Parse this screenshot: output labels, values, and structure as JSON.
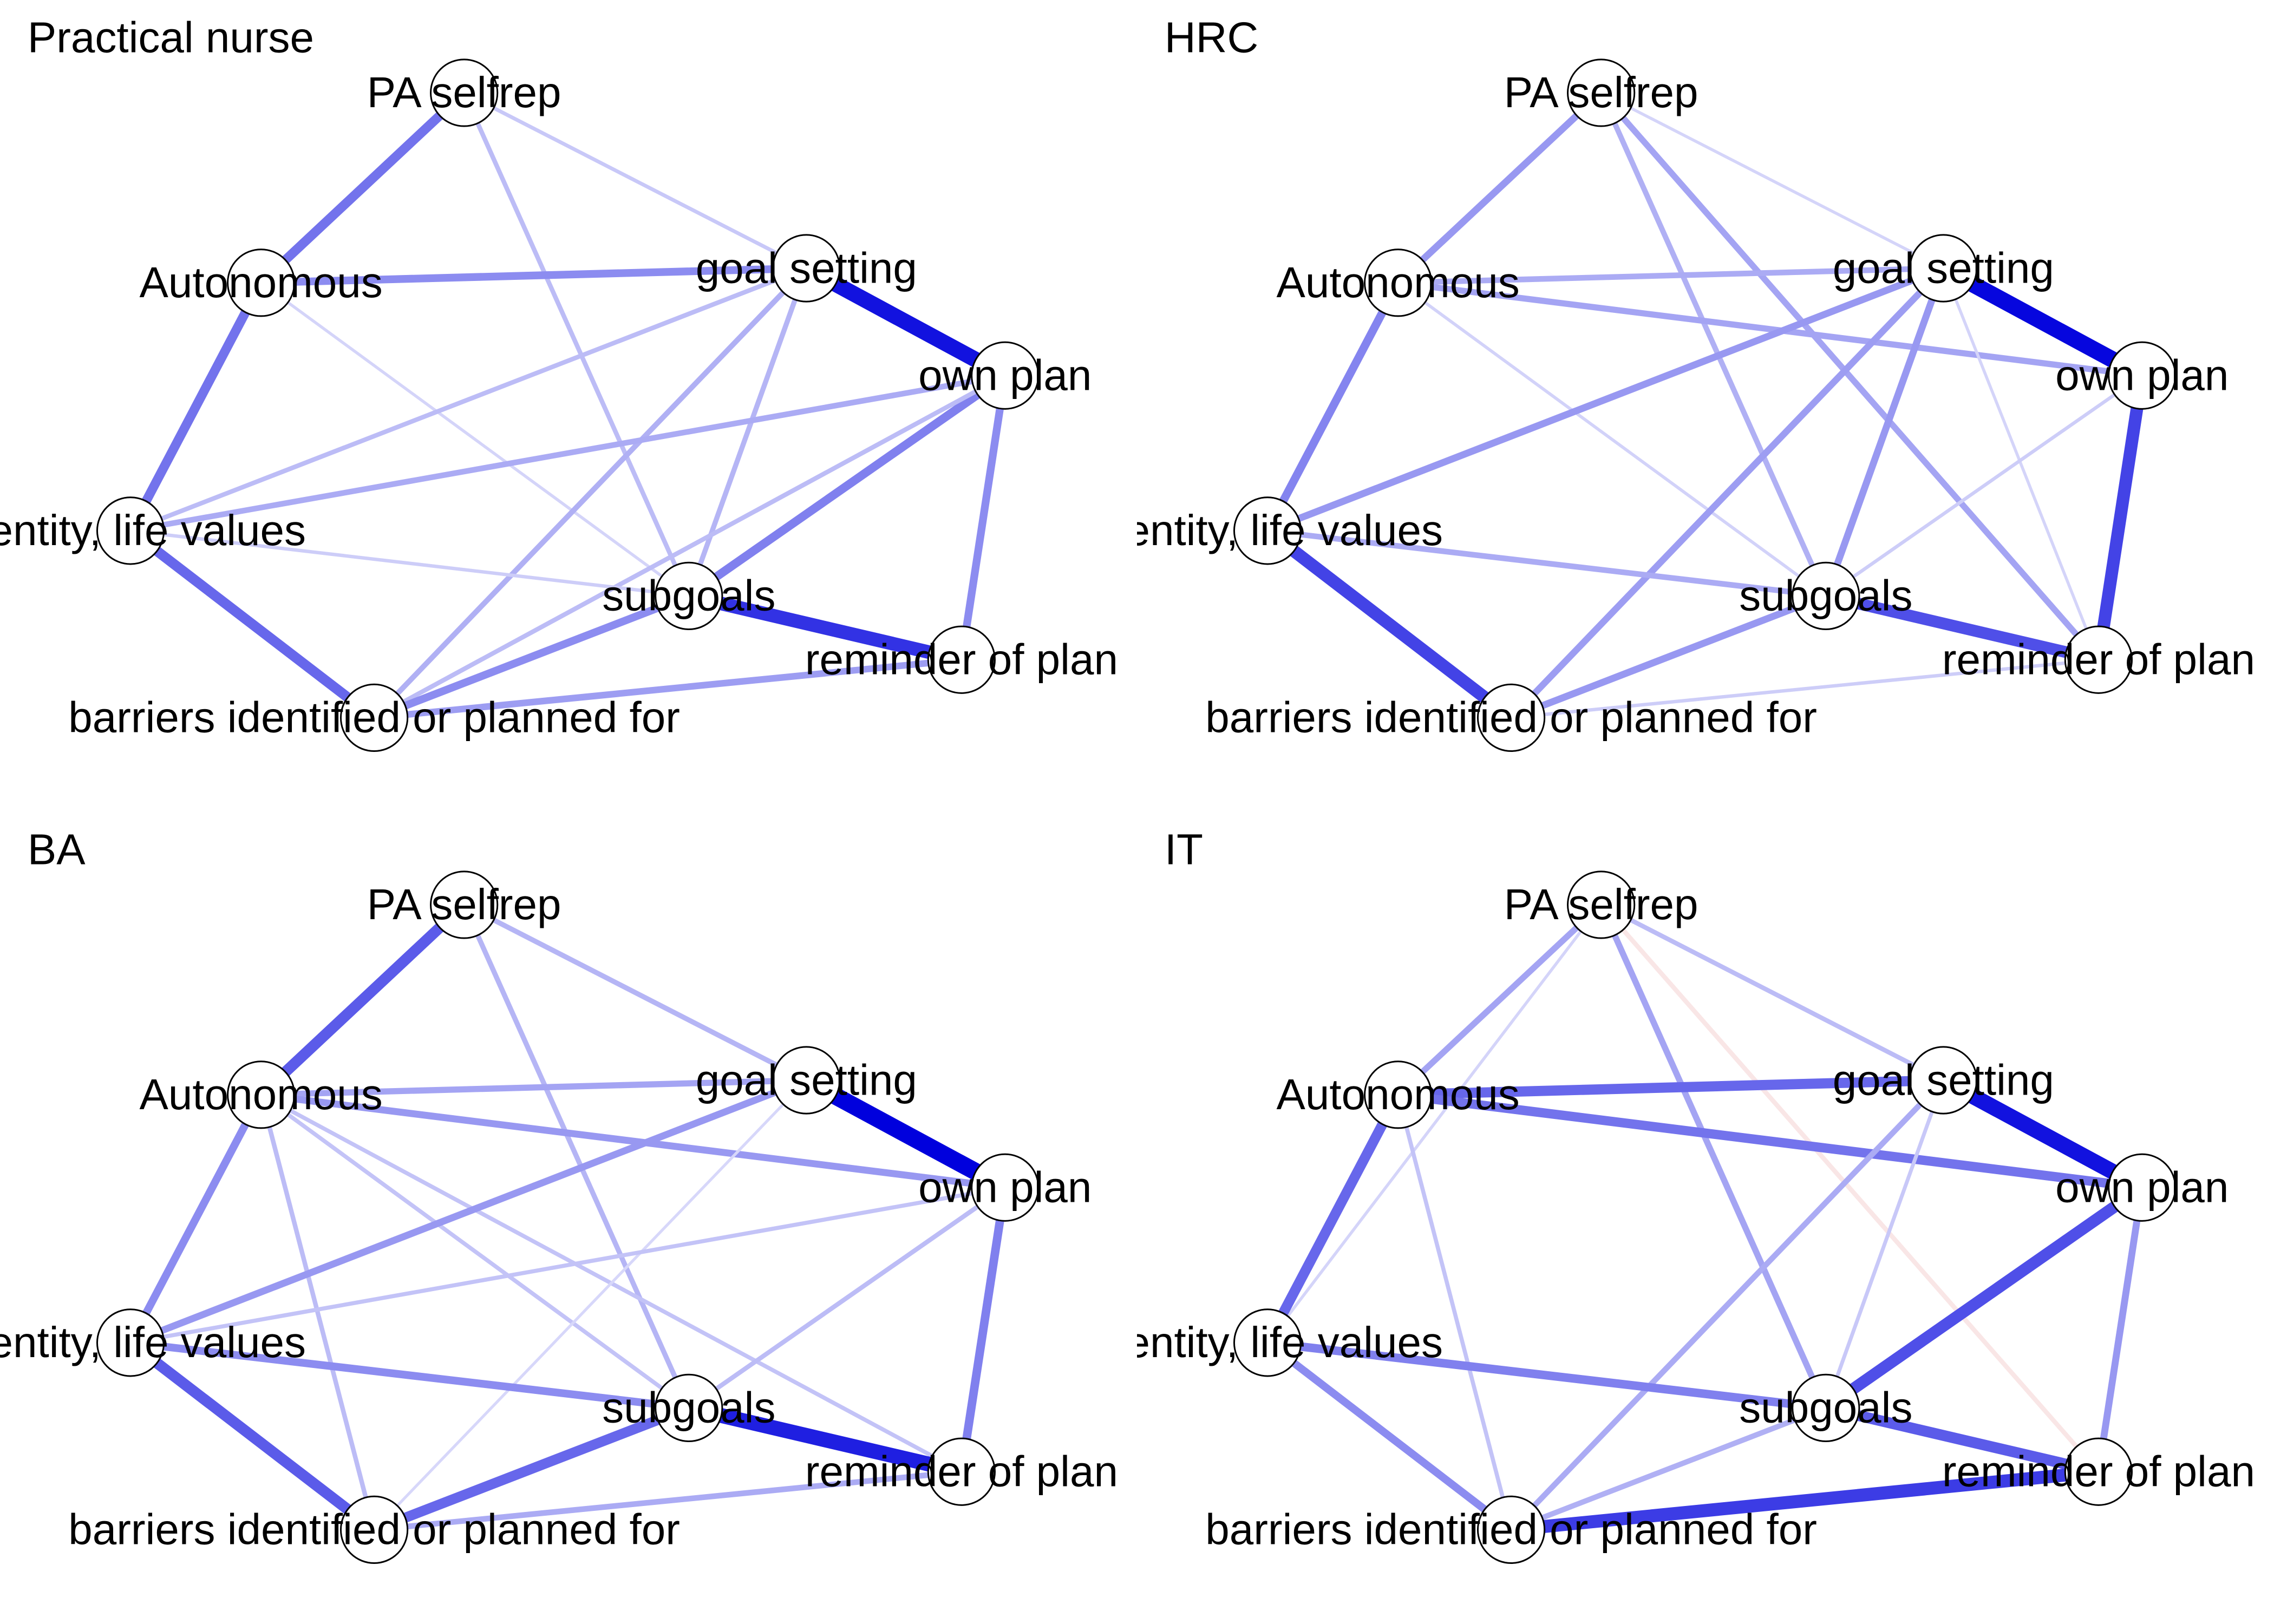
{
  "nodes": [
    {
      "id": "pa",
      "label": "PA selfrep"
    },
    {
      "id": "auto",
      "label": "Autonomous"
    },
    {
      "id": "goal",
      "label": "goal setting"
    },
    {
      "id": "own",
      "label": "own plan"
    },
    {
      "id": "iden",
      "label": "identity, life values"
    },
    {
      "id": "sub",
      "label": "subgoals"
    },
    {
      "id": "rem",
      "label": "reminder of plan"
    },
    {
      "id": "bar",
      "label": "barriers identified or planned for"
    }
  ],
  "colors": {
    "positive": "#0000dd",
    "negative": "#e8a0a0",
    "node_fill": "#ffffff",
    "node_stroke": "#000000"
  },
  "panels": [
    {
      "title": "Practical nurse",
      "edges": [
        {
          "a": "pa",
          "b": "auto",
          "w": 0.45
        },
        {
          "a": "pa",
          "b": "goal",
          "w": 0.1
        },
        {
          "a": "pa",
          "b": "sub",
          "w": 0.15
        },
        {
          "a": "auto",
          "b": "goal",
          "w": 0.35
        },
        {
          "a": "auto",
          "b": "iden",
          "w": 0.45
        },
        {
          "a": "auto",
          "b": "sub",
          "w": 0.05
        },
        {
          "a": "goal",
          "b": "own",
          "w": 0.85
        },
        {
          "a": "goal",
          "b": "iden",
          "w": 0.15
        },
        {
          "a": "goal",
          "b": "sub",
          "w": 0.18
        },
        {
          "a": "goal",
          "b": "bar",
          "w": 0.2
        },
        {
          "a": "own",
          "b": "iden",
          "w": 0.22
        },
        {
          "a": "own",
          "b": "sub",
          "w": 0.4
        },
        {
          "a": "own",
          "b": "rem",
          "w": 0.35
        },
        {
          "a": "own",
          "b": "bar",
          "w": 0.15
        },
        {
          "a": "iden",
          "b": "sub",
          "w": 0.08
        },
        {
          "a": "iden",
          "b": "bar",
          "w": 0.5
        },
        {
          "a": "sub",
          "b": "rem",
          "w": 0.72
        },
        {
          "a": "sub",
          "b": "bar",
          "w": 0.35
        },
        {
          "a": "rem",
          "b": "bar",
          "w": 0.28
        }
      ]
    },
    {
      "title": "HRC",
      "edges": [
        {
          "a": "pa",
          "b": "auto",
          "w": 0.3
        },
        {
          "a": "pa",
          "b": "goal",
          "w": 0.05
        },
        {
          "a": "pa",
          "b": "sub",
          "w": 0.2
        },
        {
          "a": "pa",
          "b": "rem",
          "w": 0.25
        },
        {
          "a": "auto",
          "b": "goal",
          "w": 0.22
        },
        {
          "a": "auto",
          "b": "own",
          "w": 0.25
        },
        {
          "a": "auto",
          "b": "iden",
          "w": 0.38
        },
        {
          "a": "auto",
          "b": "sub",
          "w": 0.06
        },
        {
          "a": "goal",
          "b": "own",
          "w": 0.9
        },
        {
          "a": "goal",
          "b": "iden",
          "w": 0.3
        },
        {
          "a": "goal",
          "b": "sub",
          "w": 0.3
        },
        {
          "a": "goal",
          "b": "bar",
          "w": 0.28
        },
        {
          "a": "goal",
          "b": "rem",
          "w": 0.05
        },
        {
          "a": "own",
          "b": "sub",
          "w": 0.08
        },
        {
          "a": "own",
          "b": "rem",
          "w": 0.65
        },
        {
          "a": "iden",
          "b": "sub",
          "w": 0.22
        },
        {
          "a": "iden",
          "b": "bar",
          "w": 0.65
        },
        {
          "a": "sub",
          "b": "rem",
          "w": 0.6
        },
        {
          "a": "sub",
          "b": "bar",
          "w": 0.3
        },
        {
          "a": "rem",
          "b": "bar",
          "w": 0.08
        }
      ]
    },
    {
      "title": "BA",
      "edges": [
        {
          "a": "pa",
          "b": "auto",
          "w": 0.55
        },
        {
          "a": "pa",
          "b": "goal",
          "w": 0.18
        },
        {
          "a": "pa",
          "b": "sub",
          "w": 0.18
        },
        {
          "a": "auto",
          "b": "goal",
          "w": 0.25
        },
        {
          "a": "auto",
          "b": "own",
          "w": 0.3
        },
        {
          "a": "auto",
          "b": "iden",
          "w": 0.35
        },
        {
          "a": "auto",
          "b": "sub",
          "w": 0.12
        },
        {
          "a": "auto",
          "b": "bar",
          "w": 0.15
        },
        {
          "a": "auto",
          "b": "rem",
          "w": 0.12
        },
        {
          "a": "goal",
          "b": "own",
          "w": 0.95
        },
        {
          "a": "goal",
          "b": "iden",
          "w": 0.3
        },
        {
          "a": "goal",
          "b": "bar",
          "w": 0.04
        },
        {
          "a": "own",
          "b": "iden",
          "w": 0.12
        },
        {
          "a": "own",
          "b": "sub",
          "w": 0.15
        },
        {
          "a": "own",
          "b": "rem",
          "w": 0.4
        },
        {
          "a": "iden",
          "b": "sub",
          "w": 0.35
        },
        {
          "a": "iden",
          "b": "bar",
          "w": 0.55
        },
        {
          "a": "sub",
          "b": "rem",
          "w": 0.8
        },
        {
          "a": "sub",
          "b": "bar",
          "w": 0.5
        },
        {
          "a": "rem",
          "b": "bar",
          "w": 0.22
        }
      ]
    },
    {
      "title": "IT",
      "edges": [
        {
          "a": "pa",
          "b": "auto",
          "w": 0.25
        },
        {
          "a": "pa",
          "b": "goal",
          "w": 0.15
        },
        {
          "a": "pa",
          "b": "sub",
          "w": 0.25
        },
        {
          "a": "pa",
          "b": "rem",
          "w": -0.15
        },
        {
          "a": "pa",
          "b": "iden",
          "w": 0.05
        },
        {
          "a": "auto",
          "b": "goal",
          "w": 0.5
        },
        {
          "a": "auto",
          "b": "own",
          "w": 0.45
        },
        {
          "a": "auto",
          "b": "iden",
          "w": 0.5
        },
        {
          "a": "auto",
          "b": "bar",
          "w": 0.12
        },
        {
          "a": "goal",
          "b": "own",
          "w": 0.85
        },
        {
          "a": "goal",
          "b": "sub",
          "w": 0.1
        },
        {
          "a": "goal",
          "b": "bar",
          "w": 0.22
        },
        {
          "a": "own",
          "b": "sub",
          "w": 0.6
        },
        {
          "a": "own",
          "b": "rem",
          "w": 0.3
        },
        {
          "a": "iden",
          "b": "sub",
          "w": 0.4
        },
        {
          "a": "iden",
          "b": "bar",
          "w": 0.35
        },
        {
          "a": "sub",
          "b": "rem",
          "w": 0.55
        },
        {
          "a": "sub",
          "b": "bar",
          "w": 0.2
        },
        {
          "a": "rem",
          "b": "bar",
          "w": 0.68
        }
      ]
    }
  ]
}
